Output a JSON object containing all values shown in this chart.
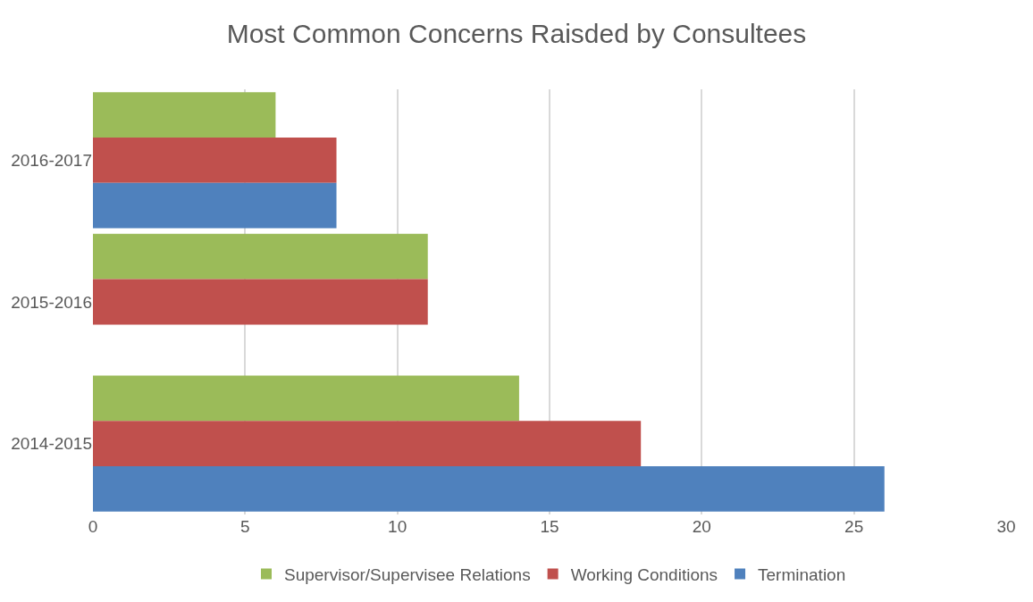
{
  "chart_data": {
    "type": "bar",
    "title": "Most Common Concerns Raisded by Consultees",
    "orientation": "horizontal",
    "categories": [
      "2016-2017",
      "2015-2016",
      "2014-2015"
    ],
    "series": [
      {
        "name": "Supervisor/Supervisee Relations",
        "color": "#9bbb59",
        "values": [
          6,
          11,
          14
        ]
      },
      {
        "name": "Working Conditions",
        "color": "#c0504d",
        "values": [
          8,
          11,
          18
        ]
      },
      {
        "name": "Termination",
        "color": "#4f81bd",
        "values": [
          8,
          null,
          26
        ]
      }
    ],
    "xlim": [
      0,
      30
    ],
    "xticks": [
      0,
      5,
      10,
      15,
      20,
      25,
      30
    ],
    "grid": "x",
    "legend": "bottom"
  }
}
